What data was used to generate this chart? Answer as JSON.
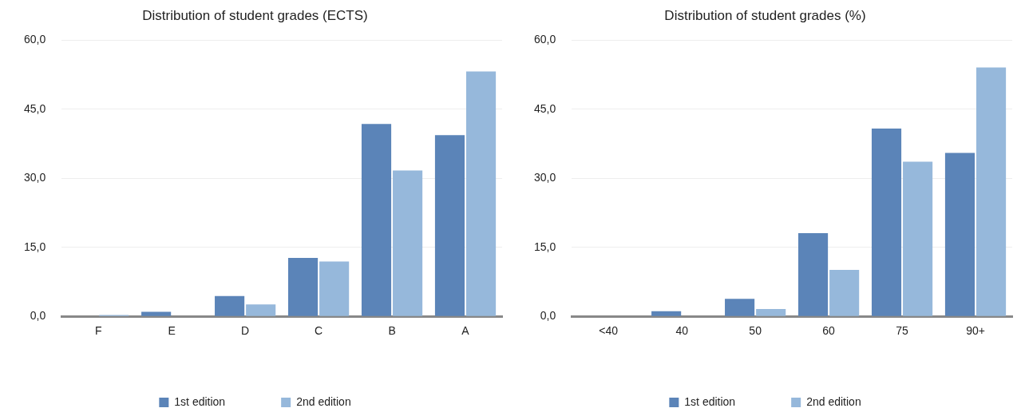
{
  "chart_data": [
    {
      "type": "bar",
      "title": "Distribution of student grades (ECTS)",
      "categories": [
        "F",
        "E",
        "D",
        "C",
        "B",
        "A"
      ],
      "series": [
        {
          "name": "1st edition",
          "color": "#5b84b8",
          "values": [
            0,
            1.0,
            4.4,
            12.7,
            41.8,
            39.4
          ]
        },
        {
          "name": "2nd edition",
          "color": "#96b8db",
          "values": [
            0.3,
            0,
            2.6,
            11.9,
            31.7,
            53.2
          ]
        }
      ],
      "ylim": [
        0,
        60
      ],
      "yticks": [
        {
          "value": 0,
          "label": "0,0"
        },
        {
          "value": 15,
          "label": "15,0"
        },
        {
          "value": 30,
          "label": "30,0"
        },
        {
          "value": 45,
          "label": "45,0"
        },
        {
          "value": 60,
          "label": "60,0"
        }
      ],
      "grid": "y",
      "legend": "bottom"
    },
    {
      "type": "bar",
      "title": "Distribution of student grades (%)",
      "categories": [
        "<40",
        "40",
        "50",
        "60",
        "75",
        "90+"
      ],
      "series": [
        {
          "name": "1st edition",
          "color": "#5b84b8",
          "values": [
            0,
            1.1,
            3.8,
            18.1,
            40.8,
            35.5
          ]
        },
        {
          "name": "2nd edition",
          "color": "#96b8db",
          "values": [
            0,
            0,
            1.6,
            10.1,
            33.6,
            54.1
          ]
        }
      ],
      "ylim": [
        0,
        60
      ],
      "yticks": [
        {
          "value": 0,
          "label": "0,0"
        },
        {
          "value": 15,
          "label": "15,0"
        },
        {
          "value": 30,
          "label": "30,0"
        },
        {
          "value": 45,
          "label": "45,0"
        },
        {
          "value": 60,
          "label": "60,0"
        }
      ],
      "grid": "y",
      "legend": "bottom"
    }
  ]
}
